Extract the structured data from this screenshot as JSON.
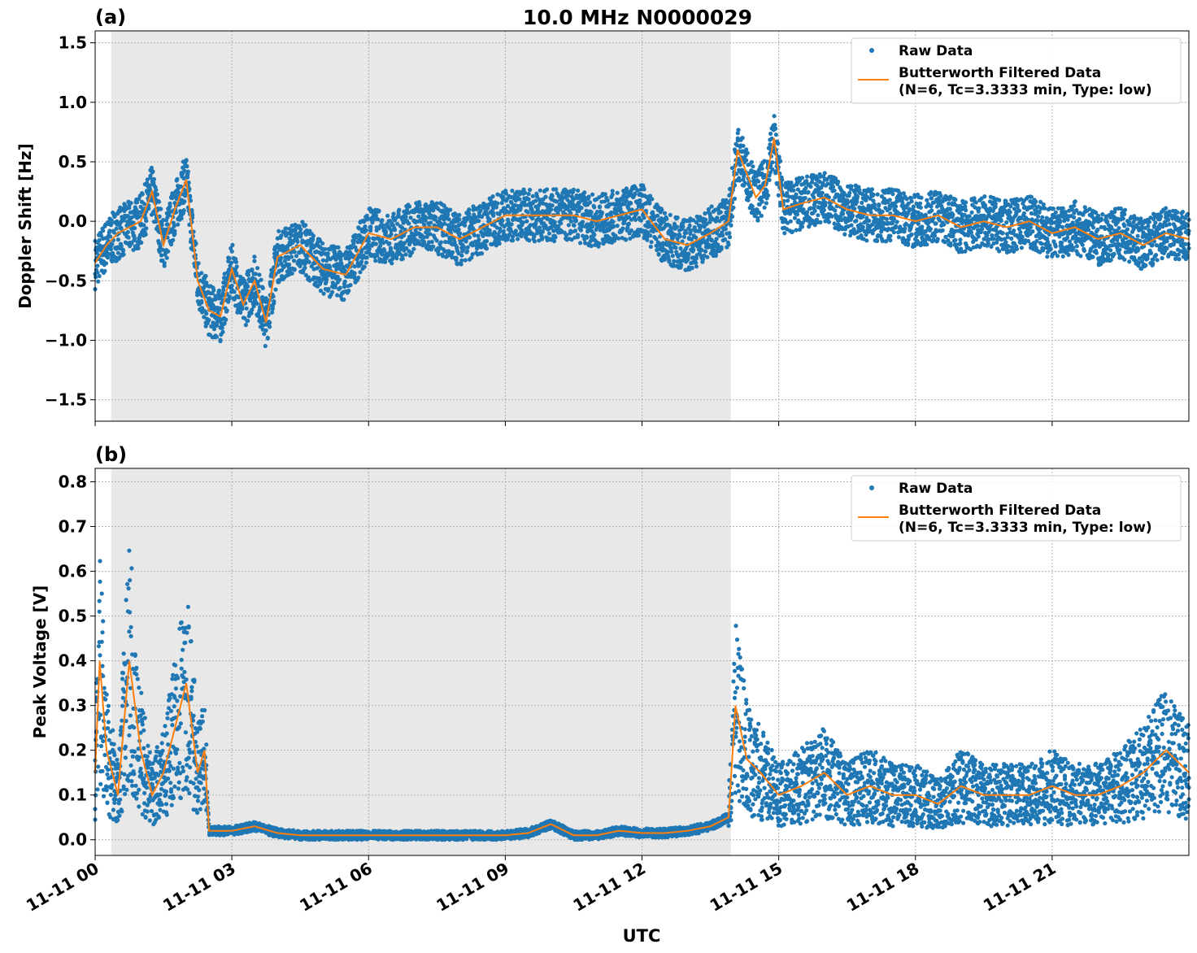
{
  "figure": {
    "title": "10.0 MHz N0000029",
    "xlabel": "UTC",
    "x_ticks": [
      "11-11 00",
      "11-11 03",
      "11-11 06",
      "11-11 09",
      "11-11 12",
      "11-11 15",
      "11-11 18",
      "11-11 21"
    ]
  },
  "colors": {
    "raw": "#1f77b4",
    "filtered": "#ff7f0e",
    "night_shade": "#e8e8e8",
    "grid": "#b0b0b0"
  },
  "chart_data": [
    {
      "type": "scatter",
      "panel_label": "(a)",
      "ylabel": "Doppler Shift [Hz]",
      "xlim_hours_utc": [
        0,
        24
      ],
      "ylim": [
        -1.68,
        1.6
      ],
      "y_ticks": [
        -1.5,
        -1.0,
        -0.5,
        0.0,
        0.5,
        1.0,
        1.5
      ],
      "y_tick_labels": [
        "−1.5",
        "−1.0",
        "−0.5",
        "0.0",
        "0.5",
        "1.0",
        "1.5"
      ],
      "shaded_interval_hours_utc": [
        0.35,
        13.95
      ],
      "grid": true,
      "legend_position": "upper-right",
      "series": [
        {
          "name": "Raw Data",
          "style": "points",
          "x_hours_utc": [
            0,
            0.25,
            0.5,
            0.75,
            1,
            1.25,
            1.5,
            1.75,
            2,
            2.25,
            2.5,
            2.75,
            3,
            3.25,
            3.5,
            3.75,
            4,
            4.5,
            5,
            5.5,
            6,
            6.5,
            7,
            7.5,
            8,
            8.5,
            9,
            9.5,
            10,
            10.5,
            11,
            11.5,
            12,
            12.5,
            13,
            13.5,
            13.9,
            14.1,
            14.3,
            14.5,
            14.7,
            14.9,
            15.1,
            15.5,
            16,
            16.5,
            17,
            17.5,
            18,
            18.5,
            19,
            19.5,
            20,
            20.5,
            21,
            21.5,
            22,
            22.5,
            23,
            23.5,
            24
          ],
          "y": [
            -0.35,
            -0.2,
            -0.1,
            -0.05,
            0.0,
            0.25,
            -0.2,
            0.1,
            0.35,
            -0.5,
            -0.75,
            -0.8,
            -0.4,
            -0.7,
            -0.5,
            -0.85,
            -0.3,
            -0.2,
            -0.4,
            -0.45,
            -0.1,
            -0.15,
            -0.05,
            -0.05,
            -0.15,
            -0.05,
            0.05,
            0.05,
            0.05,
            0.05,
            0.0,
            0.05,
            0.1,
            -0.15,
            -0.2,
            -0.1,
            0.0,
            0.6,
            0.4,
            0.2,
            0.3,
            0.7,
            0.1,
            0.15,
            0.2,
            0.1,
            0.05,
            0.05,
            0.0,
            0.05,
            -0.05,
            0.0,
            -0.05,
            0.0,
            -0.1,
            -0.05,
            -0.15,
            -0.1,
            -0.2,
            -0.1,
            -0.15
          ]
        },
        {
          "name": "Butterworth Filtered Data\n(N=6, Tc=3.3333 min, Type: low)",
          "style": "line",
          "x_hours_utc": [
            0,
            0.25,
            0.5,
            0.75,
            1,
            1.25,
            1.5,
            1.75,
            2,
            2.25,
            2.5,
            2.75,
            3,
            3.25,
            3.5,
            3.75,
            4,
            4.5,
            5,
            5.5,
            6,
            6.5,
            7,
            7.5,
            8,
            8.5,
            9,
            9.5,
            10,
            10.5,
            11,
            11.5,
            12,
            12.5,
            13,
            13.5,
            13.9,
            14.1,
            14.3,
            14.5,
            14.7,
            14.9,
            15.1,
            15.5,
            16,
            16.5,
            17,
            17.5,
            18,
            18.5,
            19,
            19.5,
            20,
            20.5,
            21,
            21.5,
            22,
            22.5,
            23,
            23.5,
            24
          ],
          "y": [
            -0.35,
            -0.2,
            -0.1,
            -0.05,
            0.0,
            0.25,
            -0.2,
            0.1,
            0.35,
            -0.5,
            -0.75,
            -0.8,
            -0.4,
            -0.7,
            -0.5,
            -0.85,
            -0.3,
            -0.2,
            -0.4,
            -0.45,
            -0.1,
            -0.15,
            -0.05,
            -0.05,
            -0.15,
            -0.05,
            0.05,
            0.05,
            0.05,
            0.05,
            0.0,
            0.05,
            0.1,
            -0.15,
            -0.2,
            -0.1,
            0.0,
            0.6,
            0.4,
            0.2,
            0.3,
            0.7,
            0.1,
            0.15,
            0.2,
            0.1,
            0.05,
            0.05,
            0.0,
            0.05,
            -0.05,
            0.0,
            -0.05,
            0.0,
            -0.1,
            -0.05,
            -0.15,
            -0.1,
            -0.2,
            -0.1,
            -0.15
          ]
        }
      ]
    },
    {
      "type": "scatter",
      "panel_label": "(b)",
      "ylabel": "Peak Voltage [V]",
      "xlim_hours_utc": [
        0,
        24
      ],
      "ylim": [
        -0.035,
        0.83
      ],
      "y_ticks": [
        0.0,
        0.1,
        0.2,
        0.3,
        0.4,
        0.5,
        0.6,
        0.7,
        0.8
      ],
      "y_tick_labels": [
        "0.0",
        "0.1",
        "0.2",
        "0.3",
        "0.4",
        "0.5",
        "0.6",
        "0.7",
        "0.8"
      ],
      "shaded_interval_hours_utc": [
        0.35,
        13.95
      ],
      "grid": true,
      "legend_position": "upper-right",
      "series": [
        {
          "name": "Raw Data",
          "style": "points",
          "x_hours_utc": [
            0,
            0.1,
            0.25,
            0.5,
            0.75,
            1,
            1.25,
            1.5,
            1.75,
            2,
            2.25,
            2.4,
            2.5,
            3,
            3.5,
            4,
            4.5,
            5,
            6,
            7,
            8,
            9,
            9.5,
            10,
            10.5,
            11,
            11.5,
            12,
            12.5,
            13,
            13.5,
            13.9,
            14.05,
            14.3,
            14.6,
            15,
            15.5,
            16,
            16.5,
            17,
            17.5,
            18,
            18.5,
            19,
            19.5,
            20,
            20.5,
            21,
            21.5,
            22,
            22.5,
            23,
            23.5,
            24
          ],
          "y": [
            0.15,
            0.4,
            0.2,
            0.1,
            0.4,
            0.2,
            0.1,
            0.15,
            0.25,
            0.35,
            0.15,
            0.2,
            0.02,
            0.02,
            0.03,
            0.015,
            0.01,
            0.01,
            0.01,
            0.01,
            0.01,
            0.01,
            0.015,
            0.035,
            0.01,
            0.01,
            0.02,
            0.015,
            0.015,
            0.02,
            0.03,
            0.05,
            0.3,
            0.18,
            0.15,
            0.1,
            0.12,
            0.15,
            0.1,
            0.12,
            0.1,
            0.1,
            0.08,
            0.12,
            0.1,
            0.1,
            0.1,
            0.12,
            0.1,
            0.1,
            0.12,
            0.15,
            0.2,
            0.15
          ]
        },
        {
          "name": "Butterworth Filtered Data\n(N=6, Tc=3.3333 min, Type: low)",
          "style": "line",
          "x_hours_utc": [
            0,
            0.1,
            0.25,
            0.5,
            0.75,
            1,
            1.25,
            1.5,
            1.75,
            2,
            2.25,
            2.4,
            2.5,
            3,
            3.5,
            4,
            4.5,
            5,
            6,
            7,
            8,
            9,
            9.5,
            10,
            10.5,
            11,
            11.5,
            12,
            12.5,
            13,
            13.5,
            13.9,
            14.05,
            14.3,
            14.6,
            15,
            15.5,
            16,
            16.5,
            17,
            17.5,
            18,
            18.5,
            19,
            19.5,
            20,
            20.5,
            21,
            21.5,
            22,
            22.5,
            23,
            23.5,
            24
          ],
          "y": [
            0.15,
            0.4,
            0.2,
            0.1,
            0.4,
            0.2,
            0.1,
            0.15,
            0.25,
            0.35,
            0.15,
            0.2,
            0.02,
            0.02,
            0.03,
            0.015,
            0.01,
            0.01,
            0.01,
            0.01,
            0.01,
            0.01,
            0.015,
            0.035,
            0.01,
            0.01,
            0.02,
            0.015,
            0.015,
            0.02,
            0.03,
            0.05,
            0.3,
            0.18,
            0.15,
            0.1,
            0.12,
            0.15,
            0.1,
            0.12,
            0.1,
            0.1,
            0.08,
            0.12,
            0.1,
            0.1,
            0.1,
            0.12,
            0.1,
            0.1,
            0.12,
            0.15,
            0.2,
            0.15
          ]
        }
      ]
    }
  ]
}
